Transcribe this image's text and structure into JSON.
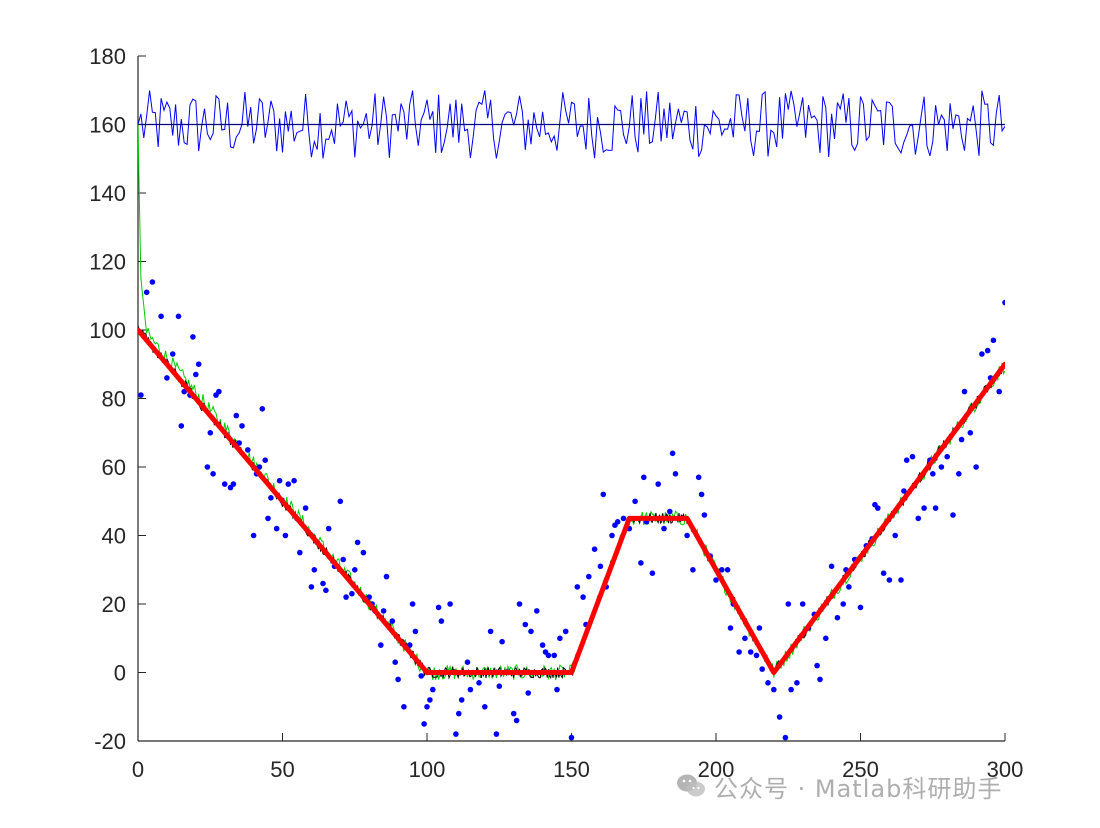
{
  "chart_data": {
    "type": "line",
    "title": "",
    "xlabel": "",
    "ylabel": "",
    "xlim": [
      0,
      300
    ],
    "ylim": [
      -20,
      180
    ],
    "xticks": [
      0,
      50,
      100,
      150,
      200,
      250,
      300
    ],
    "yticks": [
      -20,
      0,
      20,
      40,
      60,
      80,
      100,
      120,
      140,
      160,
      180
    ],
    "grid": false,
    "legend": "none",
    "series": [
      {
        "kind": "line",
        "color": "#ff0000",
        "role": "true-trajectory",
        "x": [
          0,
          100,
          150,
          170,
          190,
          220,
          300
        ],
        "y": [
          100,
          0,
          0,
          45,
          45,
          0,
          90
        ]
      },
      {
        "kind": "line",
        "color": "#000000",
        "role": "estimate-black",
        "x": [
          0,
          100,
          150,
          170,
          190,
          220,
          300
        ],
        "y": [
          100,
          0,
          0,
          45,
          45,
          0,
          90
        ]
      },
      {
        "kind": "line",
        "color": "#00cc00",
        "role": "estimate-green",
        "x": [
          0,
          1,
          3,
          100,
          150,
          170,
          190,
          220,
          300
        ],
        "y": [
          160,
          115,
          99,
          0,
          0,
          45,
          45,
          0,
          90
        ]
      },
      {
        "kind": "line",
        "color": "#000080",
        "role": "reference-160",
        "x": [
          0,
          300
        ],
        "y": [
          160,
          160
        ]
      },
      {
        "kind": "line",
        "color": "#0000ff",
        "role": "noise-around-160",
        "x_start": 0,
        "x_end": 300,
        "y_min": 150,
        "y_max": 170
      },
      {
        "kind": "scatter",
        "color": "#0000ff",
        "role": "measurements",
        "x": [
          1,
          3,
          5,
          8,
          10,
          12,
          14,
          15,
          16,
          18,
          19,
          20,
          21,
          22,
          24,
          25,
          26,
          27,
          28,
          30,
          32,
          33,
          34,
          35,
          36,
          38,
          40,
          41,
          42,
          43,
          44,
          45,
          46,
          48,
          49,
          50,
          51,
          52,
          54,
          55,
          56,
          58,
          60,
          61,
          62,
          64,
          65,
          66,
          68,
          70,
          71,
          72,
          74,
          75,
          76,
          78,
          80,
          81,
          82,
          84,
          85,
          86,
          88,
          89,
          90,
          92,
          94,
          95,
          96,
          98,
          99,
          100,
          101,
          102,
          104,
          105,
          106,
          108,
          110,
          111,
          112,
          114,
          115,
          116,
          118,
          120,
          122,
          124,
          125,
          126,
          128,
          130,
          131,
          132,
          134,
          135,
          136,
          138,
          140,
          141,
          142,
          144,
          145,
          146,
          148,
          150,
          152,
          154,
          155,
          156,
          158,
          160,
          161,
          162,
          164,
          165,
          166,
          168,
          170,
          172,
          174,
          175,
          176,
          178,
          180,
          182,
          184,
          185,
          186,
          188,
          190,
          192,
          194,
          195,
          196,
          198,
          200,
          202,
          204,
          205,
          206,
          208,
          210,
          212,
          214,
          215,
          216,
          218,
          220,
          222,
          224,
          225,
          226,
          228,
          230,
          232,
          234,
          235,
          236,
          238,
          240,
          242,
          244,
          245,
          246,
          248,
          250,
          252,
          254,
          255,
          256,
          258,
          260,
          262,
          264,
          265,
          266,
          268,
          270,
          272,
          274,
          275,
          276,
          278,
          280,
          282,
          284,
          285,
          286,
          288,
          290,
          292,
          294,
          295,
          296,
          298,
          300
        ],
        "y": [
          81,
          111,
          114,
          104,
          86,
          93,
          104,
          72,
          82,
          81,
          98,
          87,
          90,
          78,
          60,
          70,
          58,
          81,
          82,
          55,
          54,
          55,
          75,
          67,
          72,
          65,
          40,
          58,
          60,
          77,
          62,
          45,
          51,
          42,
          56,
          50,
          40,
          55,
          56,
          45,
          35,
          48,
          25,
          30,
          38,
          26,
          24,
          42,
          31,
          50,
          33,
          22,
          23,
          30,
          38,
          35,
          22,
          20,
          18,
          8,
          18,
          28,
          15,
          3,
          -2,
          -10,
          8,
          20,
          12,
          -1,
          -15,
          -10,
          -8,
          -5,
          19,
          15,
          0,
          20,
          -18,
          -12,
          -8,
          3,
          -5,
          0,
          -3,
          -10,
          12,
          -18,
          -4,
          9,
          0,
          -12,
          -14,
          20,
          14,
          -6,
          12,
          18,
          8,
          6,
          5,
          5,
          -5,
          10,
          12,
          -19,
          25,
          22,
          14,
          28,
          36,
          31,
          52,
          25,
          40,
          43,
          44,
          45,
          42,
          50,
          32,
          57,
          44,
          29,
          55,
          42,
          47,
          64,
          58,
          45,
          40,
          30,
          57,
          52,
          46,
          34,
          27,
          30,
          30,
          13,
          20,
          6,
          10,
          6,
          5,
          13,
          1,
          -3,
          -5,
          -13,
          -19,
          20,
          -5,
          -3,
          20,
          13,
          17,
          2,
          -2,
          10,
          31,
          16,
          20,
          30,
          25,
          33,
          19,
          37,
          39,
          49,
          48,
          29,
          27,
          40,
          27,
          53,
          62,
          63,
          45,
          48,
          62,
          58,
          48,
          60,
          63,
          46,
          58,
          68,
          82,
          70,
          60,
          93,
          94,
          86,
          97,
          82,
          108
        ]
      }
    ]
  },
  "watermark": {
    "text": "公众号 · Matlab科研助手",
    "icon": "wechat-logo"
  }
}
